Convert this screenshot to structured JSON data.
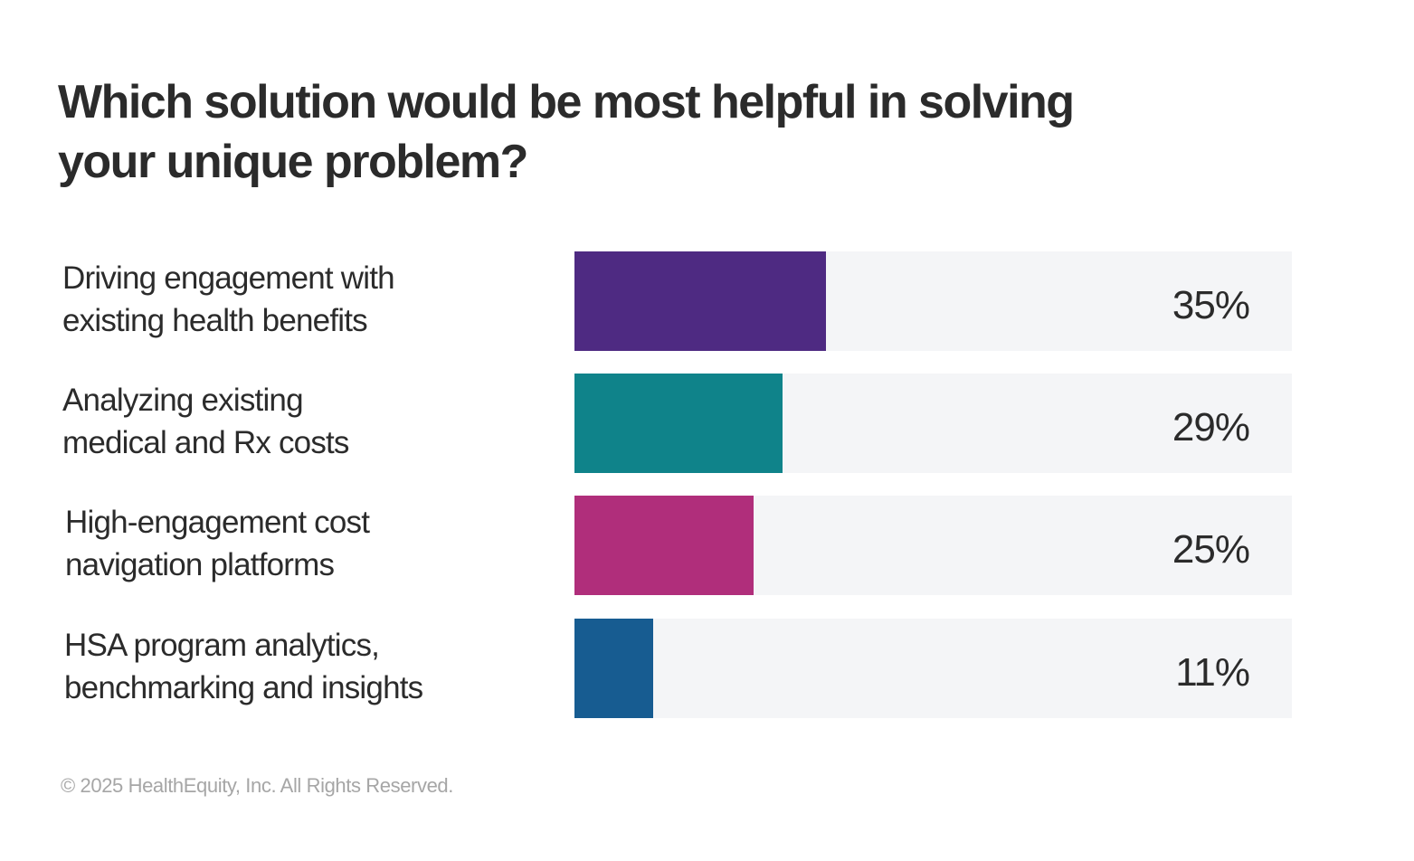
{
  "chart_data": {
    "type": "bar",
    "orientation": "horizontal",
    "title": "Which solution would be most helpful in solving your unique problem?",
    "title_lines": [
      "Which solution would be most helpful in solving",
      "your unique problem?"
    ],
    "categories": [
      "Driving engagement with existing health benefits",
      "Analyzing existing medical and Rx costs",
      "High-engagement cost navigation platforms",
      "HSA program analytics, benchmarking and insights"
    ],
    "category_lines": [
      [
        "Driving engagement with",
        "existing health benefits"
      ],
      [
        "Analyzing existing",
        "medical and Rx costs"
      ],
      [
        "High-engagement cost",
        "navigation platforms"
      ],
      [
        "HSA program analytics,",
        "benchmarking and insights"
      ]
    ],
    "values": [
      35,
      29,
      25,
      11
    ],
    "value_labels": [
      "35%",
      "29%",
      "25%",
      "11%"
    ],
    "colors": [
      "#4e2a82",
      "#0f838a",
      "#b02e7b",
      "#175c91"
    ],
    "xlim": [
      0,
      100
    ],
    "unit": "%",
    "xlabel": "",
    "ylabel": "",
    "grid": false,
    "legend": "none"
  },
  "footer": {
    "copyright": "© 2025 HealthEquity, Inc. All Rights Reserved."
  }
}
